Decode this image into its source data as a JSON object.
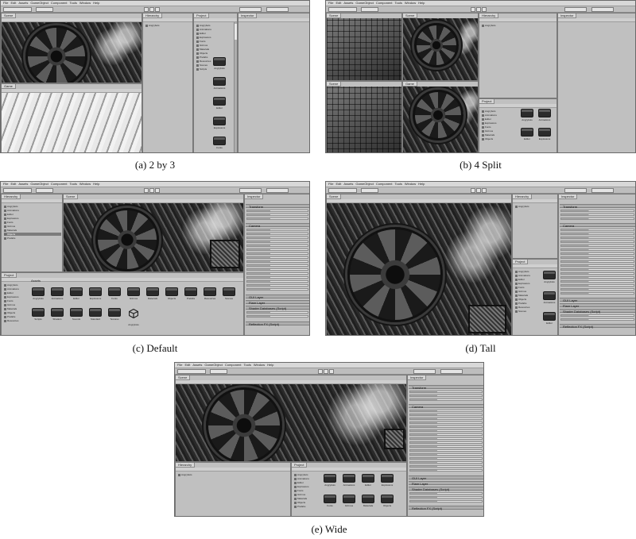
{
  "panels": {
    "a": {
      "caption": "(a) 2 by 3"
    },
    "b": {
      "caption": "(b) 4 Split"
    },
    "c": {
      "caption": "(c) Default"
    },
    "d": {
      "caption": "(d) Tall"
    },
    "e": {
      "caption": "(e) Wide"
    }
  },
  "editor": {
    "menu": [
      "File",
      "Edit",
      "Assets",
      "GameObject",
      "Component",
      "Tools",
      "Window",
      "Help"
    ],
    "tabs": {
      "scene": "Scene",
      "game": "Game",
      "hierarchy": "Hierarchy",
      "project": "Project",
      "inspector": "Inspector",
      "assets": "Assets"
    },
    "inspector_sections": [
      "Transform",
      "Camera",
      "GUI Layer",
      "Flare Layer",
      "Shader Databases (Script)",
      "Reflection FX (Script)"
    ],
    "asset_names": [
      "Angrybots",
      "Animations",
      "Editor",
      "Explosions",
      "Fonts",
      "Gizmos",
      "Materials",
      "Objects",
      "Prefabs",
      "Resources",
      "Scenes",
      "Scripts",
      "Shaders",
      "Sounds",
      "Standard",
      "Textures",
      "Angrybots"
    ]
  },
  "colors": {
    "chrome": "#c0c0c0",
    "menubar": "#d8d8d8",
    "border": "#7a7a7a",
    "scene_dark": "#1c1c1c"
  }
}
